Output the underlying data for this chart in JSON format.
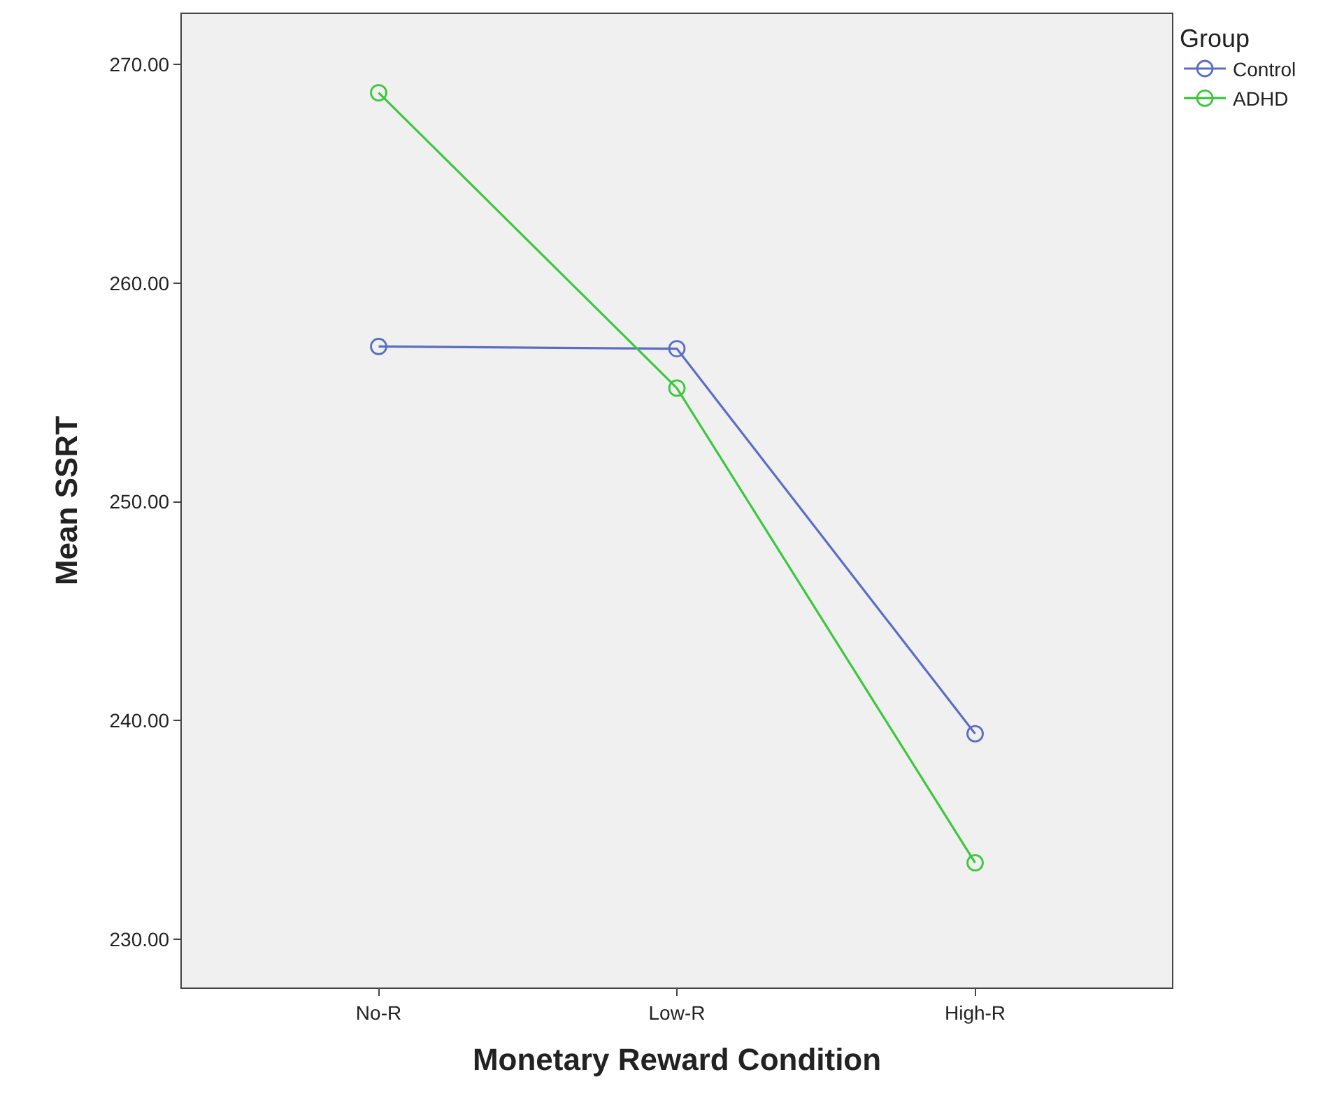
{
  "chart_data": {
    "type": "line",
    "xlabel": "Monetary Reward Condition",
    "ylabel": "Mean SSRT",
    "categories": [
      "No-R",
      "Low-R",
      "High-R"
    ],
    "series": [
      {
        "name": "Control",
        "color": "#5a6ec4",
        "values": [
          257.1,
          257.0,
          239.4
        ]
      },
      {
        "name": "ADHD",
        "color": "#3cc83c",
        "values": [
          268.7,
          255.2,
          233.5
        ]
      }
    ],
    "ylim": [
      227.8,
      272.3
    ],
    "yticks": [
      {
        "value": 230,
        "label": "230.00"
      },
      {
        "value": 240,
        "label": "240.00"
      },
      {
        "value": 250,
        "label": "250.00"
      },
      {
        "value": 260,
        "label": "260.00"
      },
      {
        "value": 270,
        "label": "270.00"
      }
    ],
    "legend_title": "Group",
    "legend": "top right",
    "grid": false,
    "marker": "circle",
    "line_style": "solid"
  }
}
